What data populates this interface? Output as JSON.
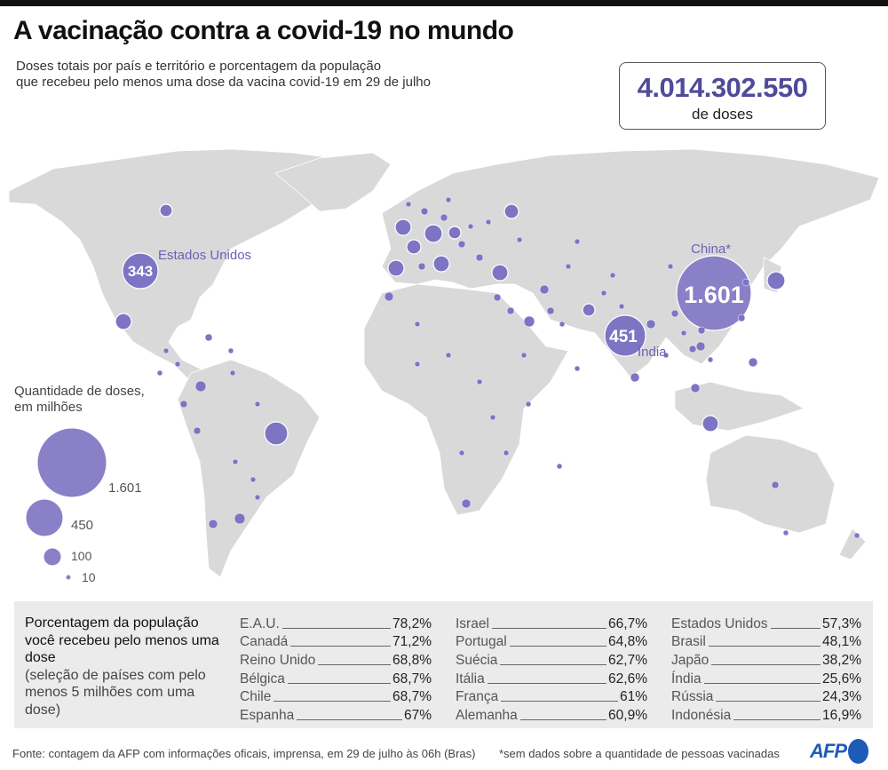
{
  "header": {
    "title": "A vacinação contra a covid-19 no mundo",
    "subtitle_line1": "Doses totais por país e território e porcentagem da população",
    "subtitle_line2": "que recebeu pelo menos uma dose da vacina covid-19 em 29 de julho",
    "total_doses": "4.014.302.550",
    "total_label": "de doses"
  },
  "map": {
    "bubble_color": "#7d74c4",
    "land_color": "#d9d9d9",
    "labels": [
      {
        "country": "Estados Unidos",
        "doses_millions": "343"
      },
      {
        "country": "China*",
        "doses_millions": "1.601"
      },
      {
        "country": "Índia",
        "doses_millions": "451"
      }
    ]
  },
  "legend": {
    "title_line1": "Quantidade de doses,",
    "title_line2": "em milhões",
    "sizes": [
      "1.601",
      "450",
      "100",
      "10"
    ]
  },
  "table": {
    "title": "Porcentagem da população você recebeu pelo menos uma dose",
    "subtitle": "(seleção de países com pelo menos 5 milhões com uma dose)",
    "columns": [
      [
        {
          "country": "E.A.U.",
          "pct": "78,2%"
        },
        {
          "country": "Canadá",
          "pct": "71,2%"
        },
        {
          "country": "Reino Unido",
          "pct": "68,8%"
        },
        {
          "country": "Bélgica",
          "pct": "68,7%"
        },
        {
          "country": "Chile",
          "pct": "68,7%"
        },
        {
          "country": "Espanha",
          "pct": "67%"
        }
      ],
      [
        {
          "country": "Israel",
          "pct": "66,7%"
        },
        {
          "country": "Portugal",
          "pct": "64,8%"
        },
        {
          "country": "Suécia",
          "pct": "62,7%"
        },
        {
          "country": "Itália",
          "pct": "62,6%"
        },
        {
          "country": "França",
          "pct": "61%"
        },
        {
          "country": "Alemanha",
          "pct": "60,9%"
        }
      ],
      [
        {
          "country": "Estados Unidos",
          "pct": "57,3%"
        },
        {
          "country": "Brasil",
          "pct": "48,1%"
        },
        {
          "country": "Japão",
          "pct": "38,2%"
        },
        {
          "country": "Índia",
          "pct": "25,6%"
        },
        {
          "country": "Rússia",
          "pct": "24,3%"
        },
        {
          "country": "Indonésia",
          "pct": "16,9%"
        }
      ]
    ]
  },
  "footer": {
    "source": "Fonte: contagem da AFP com informações oficais, imprensa, em 29 de julho às 06h (Bras)",
    "note": "*sem dados sobre a quantidade de pessoas vacinadas",
    "logo": "AFP"
  }
}
